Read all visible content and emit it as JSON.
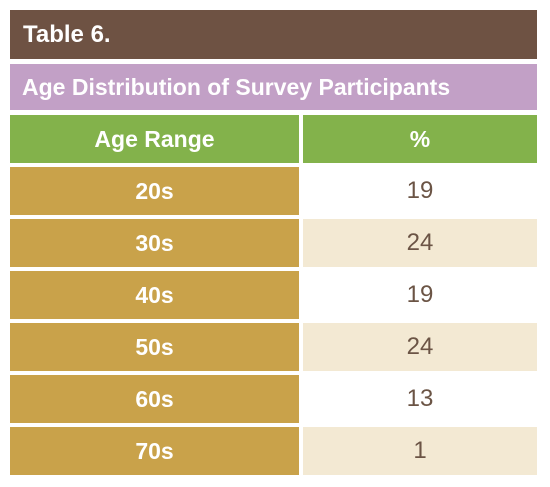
{
  "table": {
    "title": "Table 6.",
    "subtitle": "Age Distribution of Survey Participants",
    "headers": [
      "Age Range",
      "%"
    ],
    "rows": [
      {
        "label": "20s",
        "value": "19"
      },
      {
        "label": "30s",
        "value": "24"
      },
      {
        "label": "40s",
        "value": "19"
      },
      {
        "label": "50s",
        "value": "24"
      },
      {
        "label": "60s",
        "value": "13"
      },
      {
        "label": "70s",
        "value": "1"
      }
    ]
  },
  "colors": {
    "title_bar": "#6e5243",
    "subtitle_bar": "#c2a0c6",
    "header_row": "#83b24b",
    "label_column": "#c9a24a",
    "alt_row": "#f3e9d3",
    "value_text": "#6b5445"
  },
  "chart_data": {
    "type": "table",
    "title": "Table 6.",
    "subtitle": "Age Distribution of Survey Participants",
    "columns": [
      "Age Range",
      "%"
    ],
    "categories": [
      "20s",
      "30s",
      "40s",
      "50s",
      "60s",
      "70s"
    ],
    "values": [
      19,
      24,
      19,
      24,
      13,
      1
    ]
  }
}
